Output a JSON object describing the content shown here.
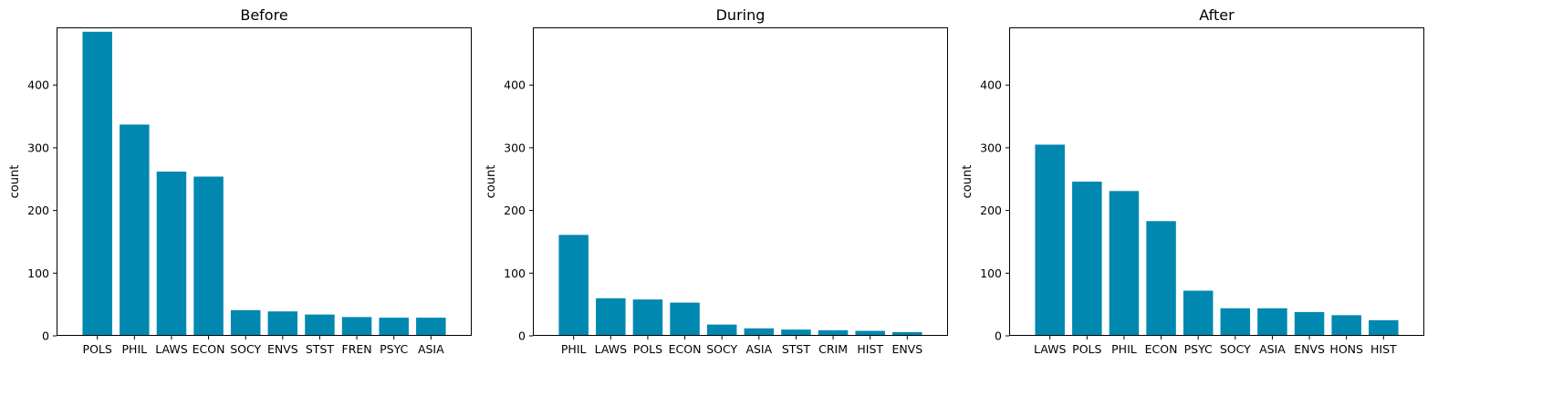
{
  "chart_data": [
    {
      "type": "bar",
      "title": "Before",
      "ylabel": "count",
      "xlabel": "",
      "ylim": [
        0,
        492
      ],
      "yticks": [
        0,
        100,
        200,
        300,
        400
      ],
      "bar_color": "#0088b0",
      "grid": false,
      "categories": [
        "POLS",
        "PHIL",
        "LAWS",
        "ECON",
        "SOCY",
        "ENVS",
        "STST",
        "FREN",
        "PSYC",
        "ASIA"
      ],
      "values": [
        485,
        337,
        262,
        254,
        41,
        39,
        34,
        30,
        29,
        29
      ]
    },
    {
      "type": "bar",
      "title": "During",
      "ylabel": "count",
      "xlabel": "",
      "ylim": [
        0,
        492
      ],
      "yticks": [
        0,
        100,
        200,
        300,
        400
      ],
      "bar_color": "#0088b0",
      "grid": false,
      "categories": [
        "PHIL",
        "LAWS",
        "POLS",
        "ECON",
        "SOCY",
        "ASIA",
        "STST",
        "CRIM",
        "HIST",
        "ENVS"
      ],
      "values": [
        161,
        60,
        58,
        53,
        18,
        12,
        10,
        9,
        8,
        6
      ]
    },
    {
      "type": "bar",
      "title": "After",
      "ylabel": "count",
      "xlabel": "",
      "ylim": [
        0,
        492
      ],
      "yticks": [
        0,
        100,
        200,
        300,
        400
      ],
      "bar_color": "#0088b0",
      "grid": false,
      "categories": [
        "LAWS",
        "POLS",
        "PHIL",
        "ECON",
        "PSYC",
        "SOCY",
        "ASIA",
        "ENVS",
        "HONS",
        "HIST"
      ],
      "values": [
        305,
        246,
        231,
        183,
        72,
        44,
        44,
        38,
        33,
        25
      ]
    }
  ]
}
